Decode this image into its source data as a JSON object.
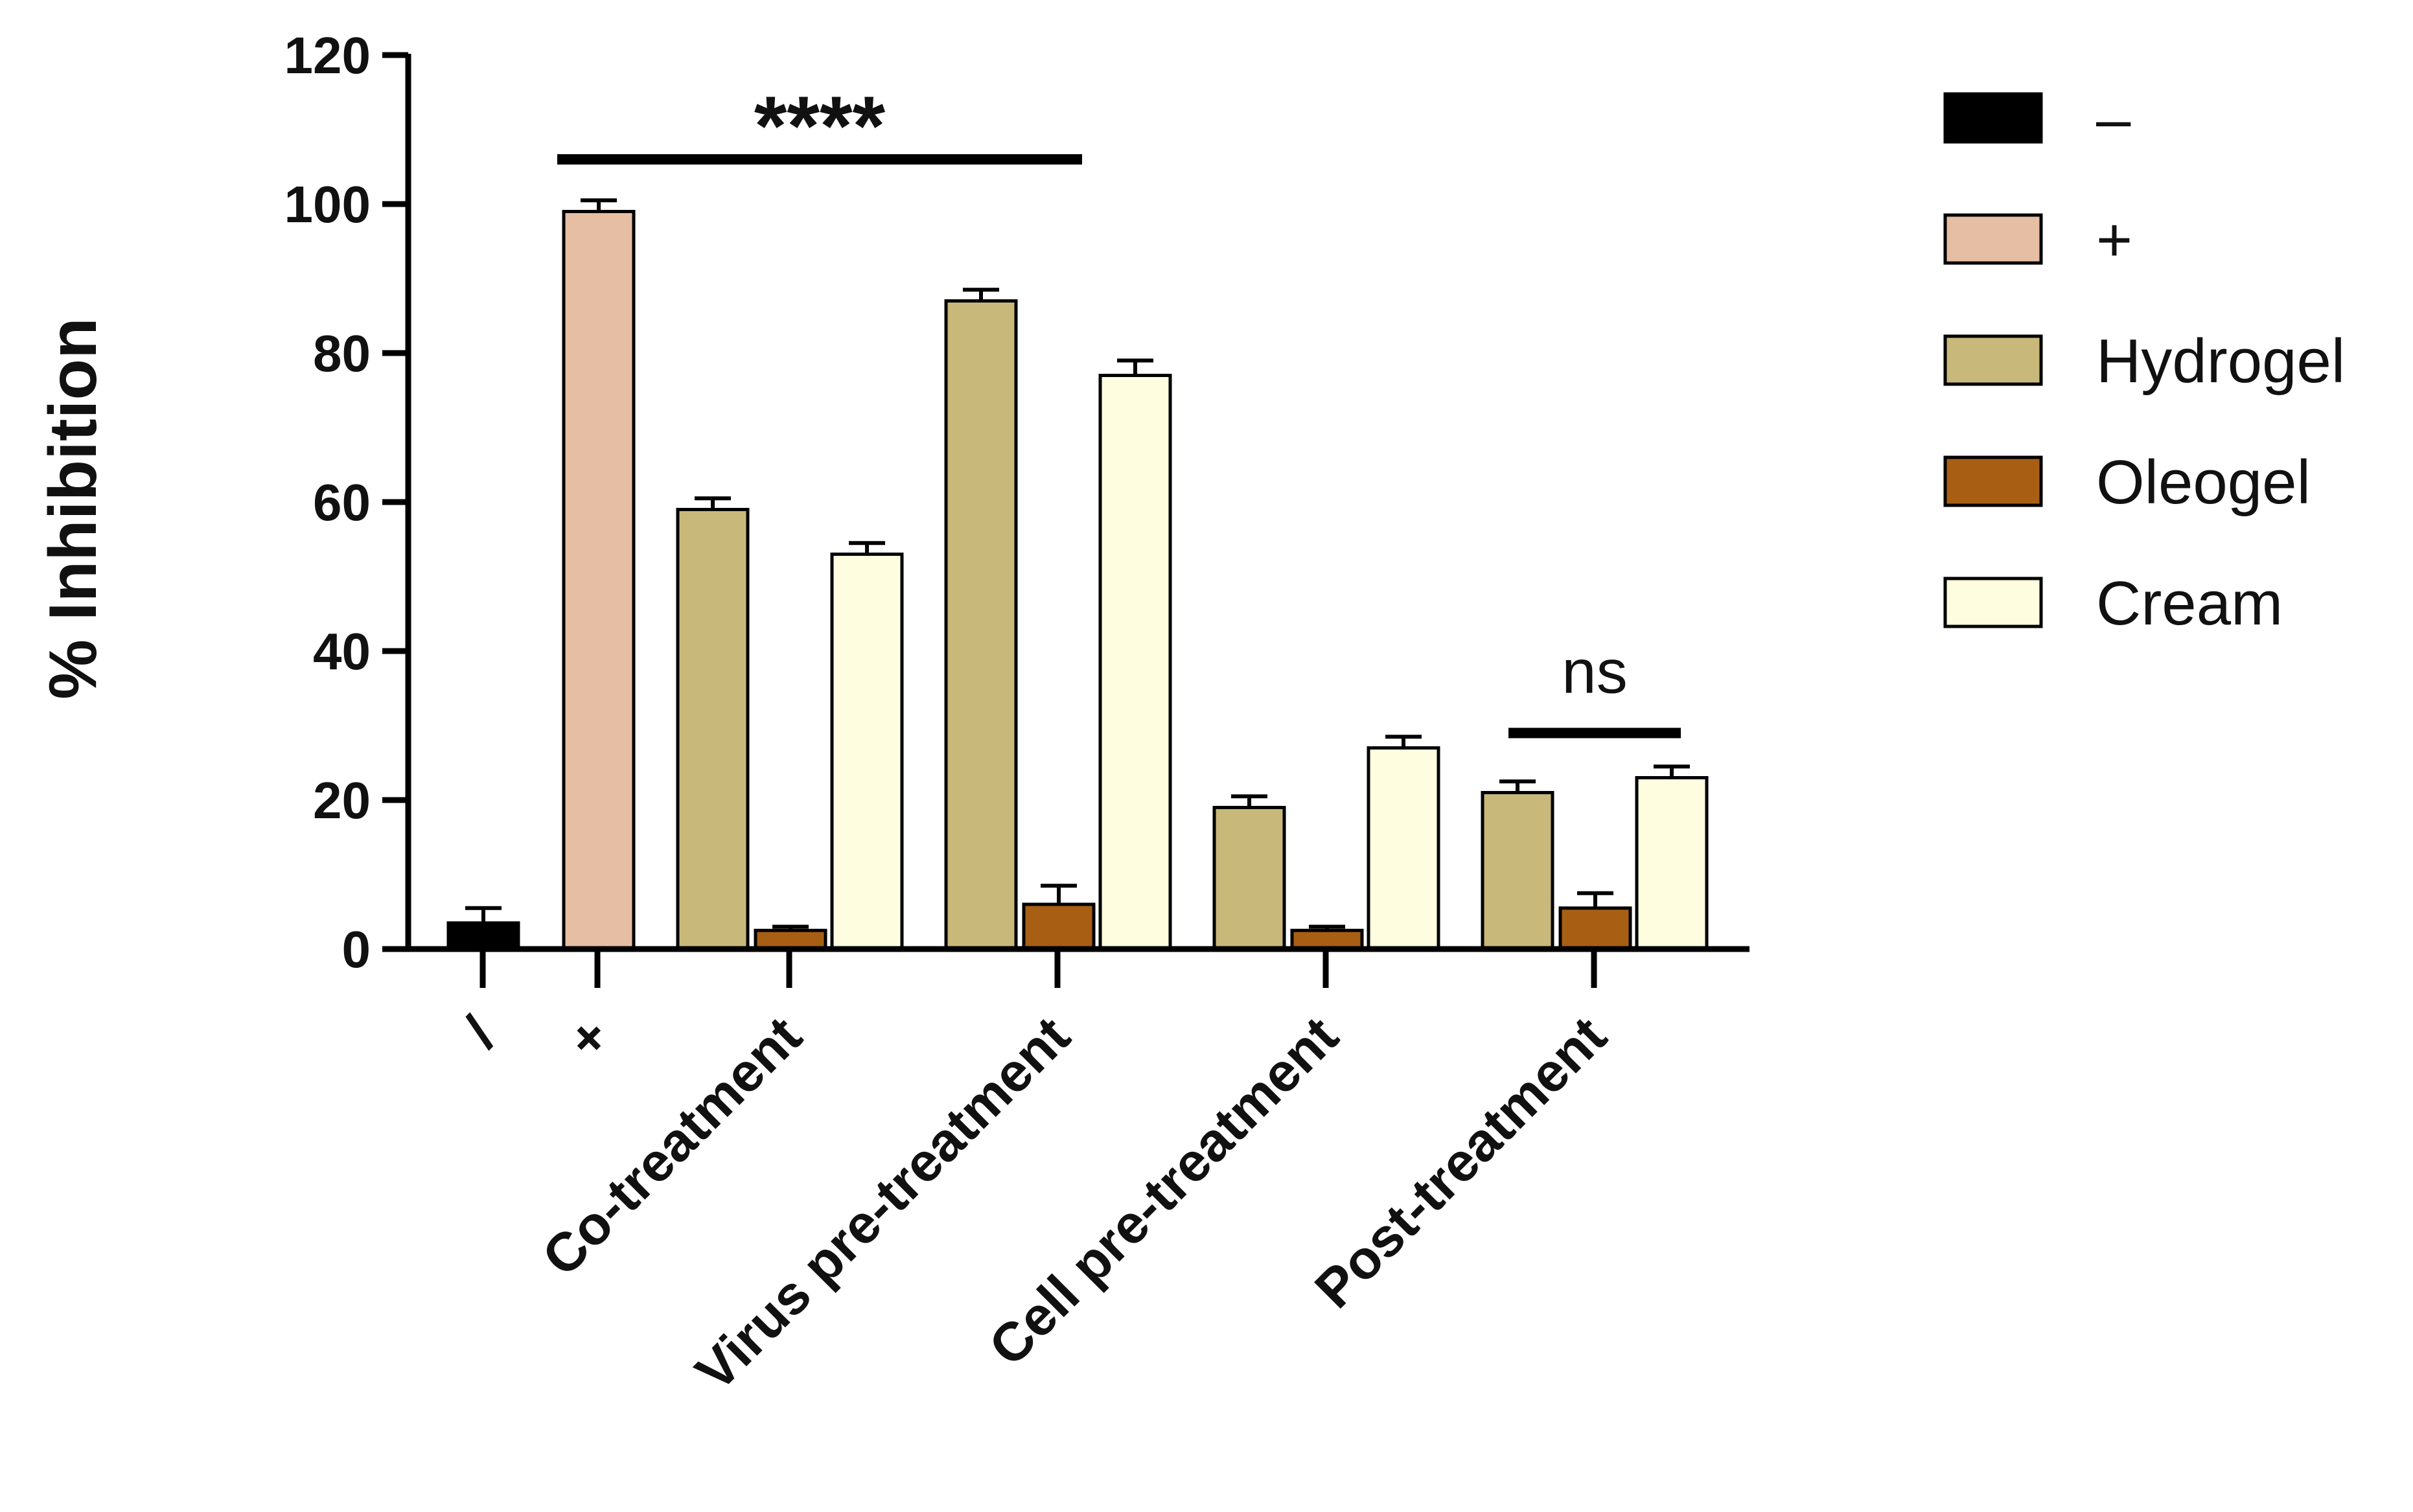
{
  "chart_data": {
    "type": "bar",
    "title": "",
    "xlabel": "",
    "ylabel": "% Inhibition",
    "ylim": [
      0,
      120
    ],
    "yticks": [
      0,
      20,
      40,
      60,
      80,
      100,
      120
    ],
    "legend_position": "right",
    "colors": {
      "neg": "#000000",
      "pos": "#e6bea4",
      "hydrogel": "#c8b87a",
      "oleogel": "#a85f14",
      "cream": "#fefde0"
    },
    "series": [
      {
        "key": "neg",
        "name": "–"
      },
      {
        "key": "pos",
        "name": "+"
      },
      {
        "key": "hydrogel",
        "name": "Hydrogel"
      },
      {
        "key": "oleogel",
        "name": "Oleogel"
      },
      {
        "key": "cream",
        "name": "Cream"
      }
    ],
    "groups": [
      {
        "label": "/",
        "bars": [
          {
            "series": "neg",
            "value": 3.5,
            "error": 2.0
          }
        ]
      },
      {
        "label": "+",
        "bars": [
          {
            "series": "pos",
            "value": 99,
            "error": 1.5
          }
        ]
      },
      {
        "label": "Co-treatment",
        "bars": [
          {
            "series": "hydrogel",
            "value": 59,
            "error": 1.5
          },
          {
            "series": "oleogel",
            "value": 2.5,
            "error": 0.5
          },
          {
            "series": "cream",
            "value": 53,
            "error": 1.5
          }
        ]
      },
      {
        "label": "Virus pre-treatment",
        "bars": [
          {
            "series": "hydrogel",
            "value": 87,
            "error": 1.5
          },
          {
            "series": "oleogel",
            "value": 6,
            "error": 2.5
          },
          {
            "series": "cream",
            "value": 77,
            "error": 2.0
          }
        ]
      },
      {
        "label": "Cell pre-treatment",
        "bars": [
          {
            "series": "hydrogel",
            "value": 19,
            "error": 1.5
          },
          {
            "series": "oleogel",
            "value": 2.5,
            "error": 0.5
          },
          {
            "series": "cream",
            "value": 27,
            "error": 1.5
          }
        ]
      },
      {
        "label": "Post-treatment",
        "bars": [
          {
            "series": "hydrogel",
            "value": 21,
            "error": 1.5
          },
          {
            "series": "oleogel",
            "value": 5.5,
            "error": 2.0
          },
          {
            "series": "cream",
            "value": 23,
            "error": 1.5
          }
        ]
      }
    ],
    "annotations": [
      {
        "text": "****",
        "from_group": 1,
        "to_group": 3,
        "at_value": 106,
        "text_value": 112
      },
      {
        "text": "ns",
        "from_group": 5,
        "to_group": 5,
        "at_value": 29,
        "text_value": 37
      }
    ]
  }
}
